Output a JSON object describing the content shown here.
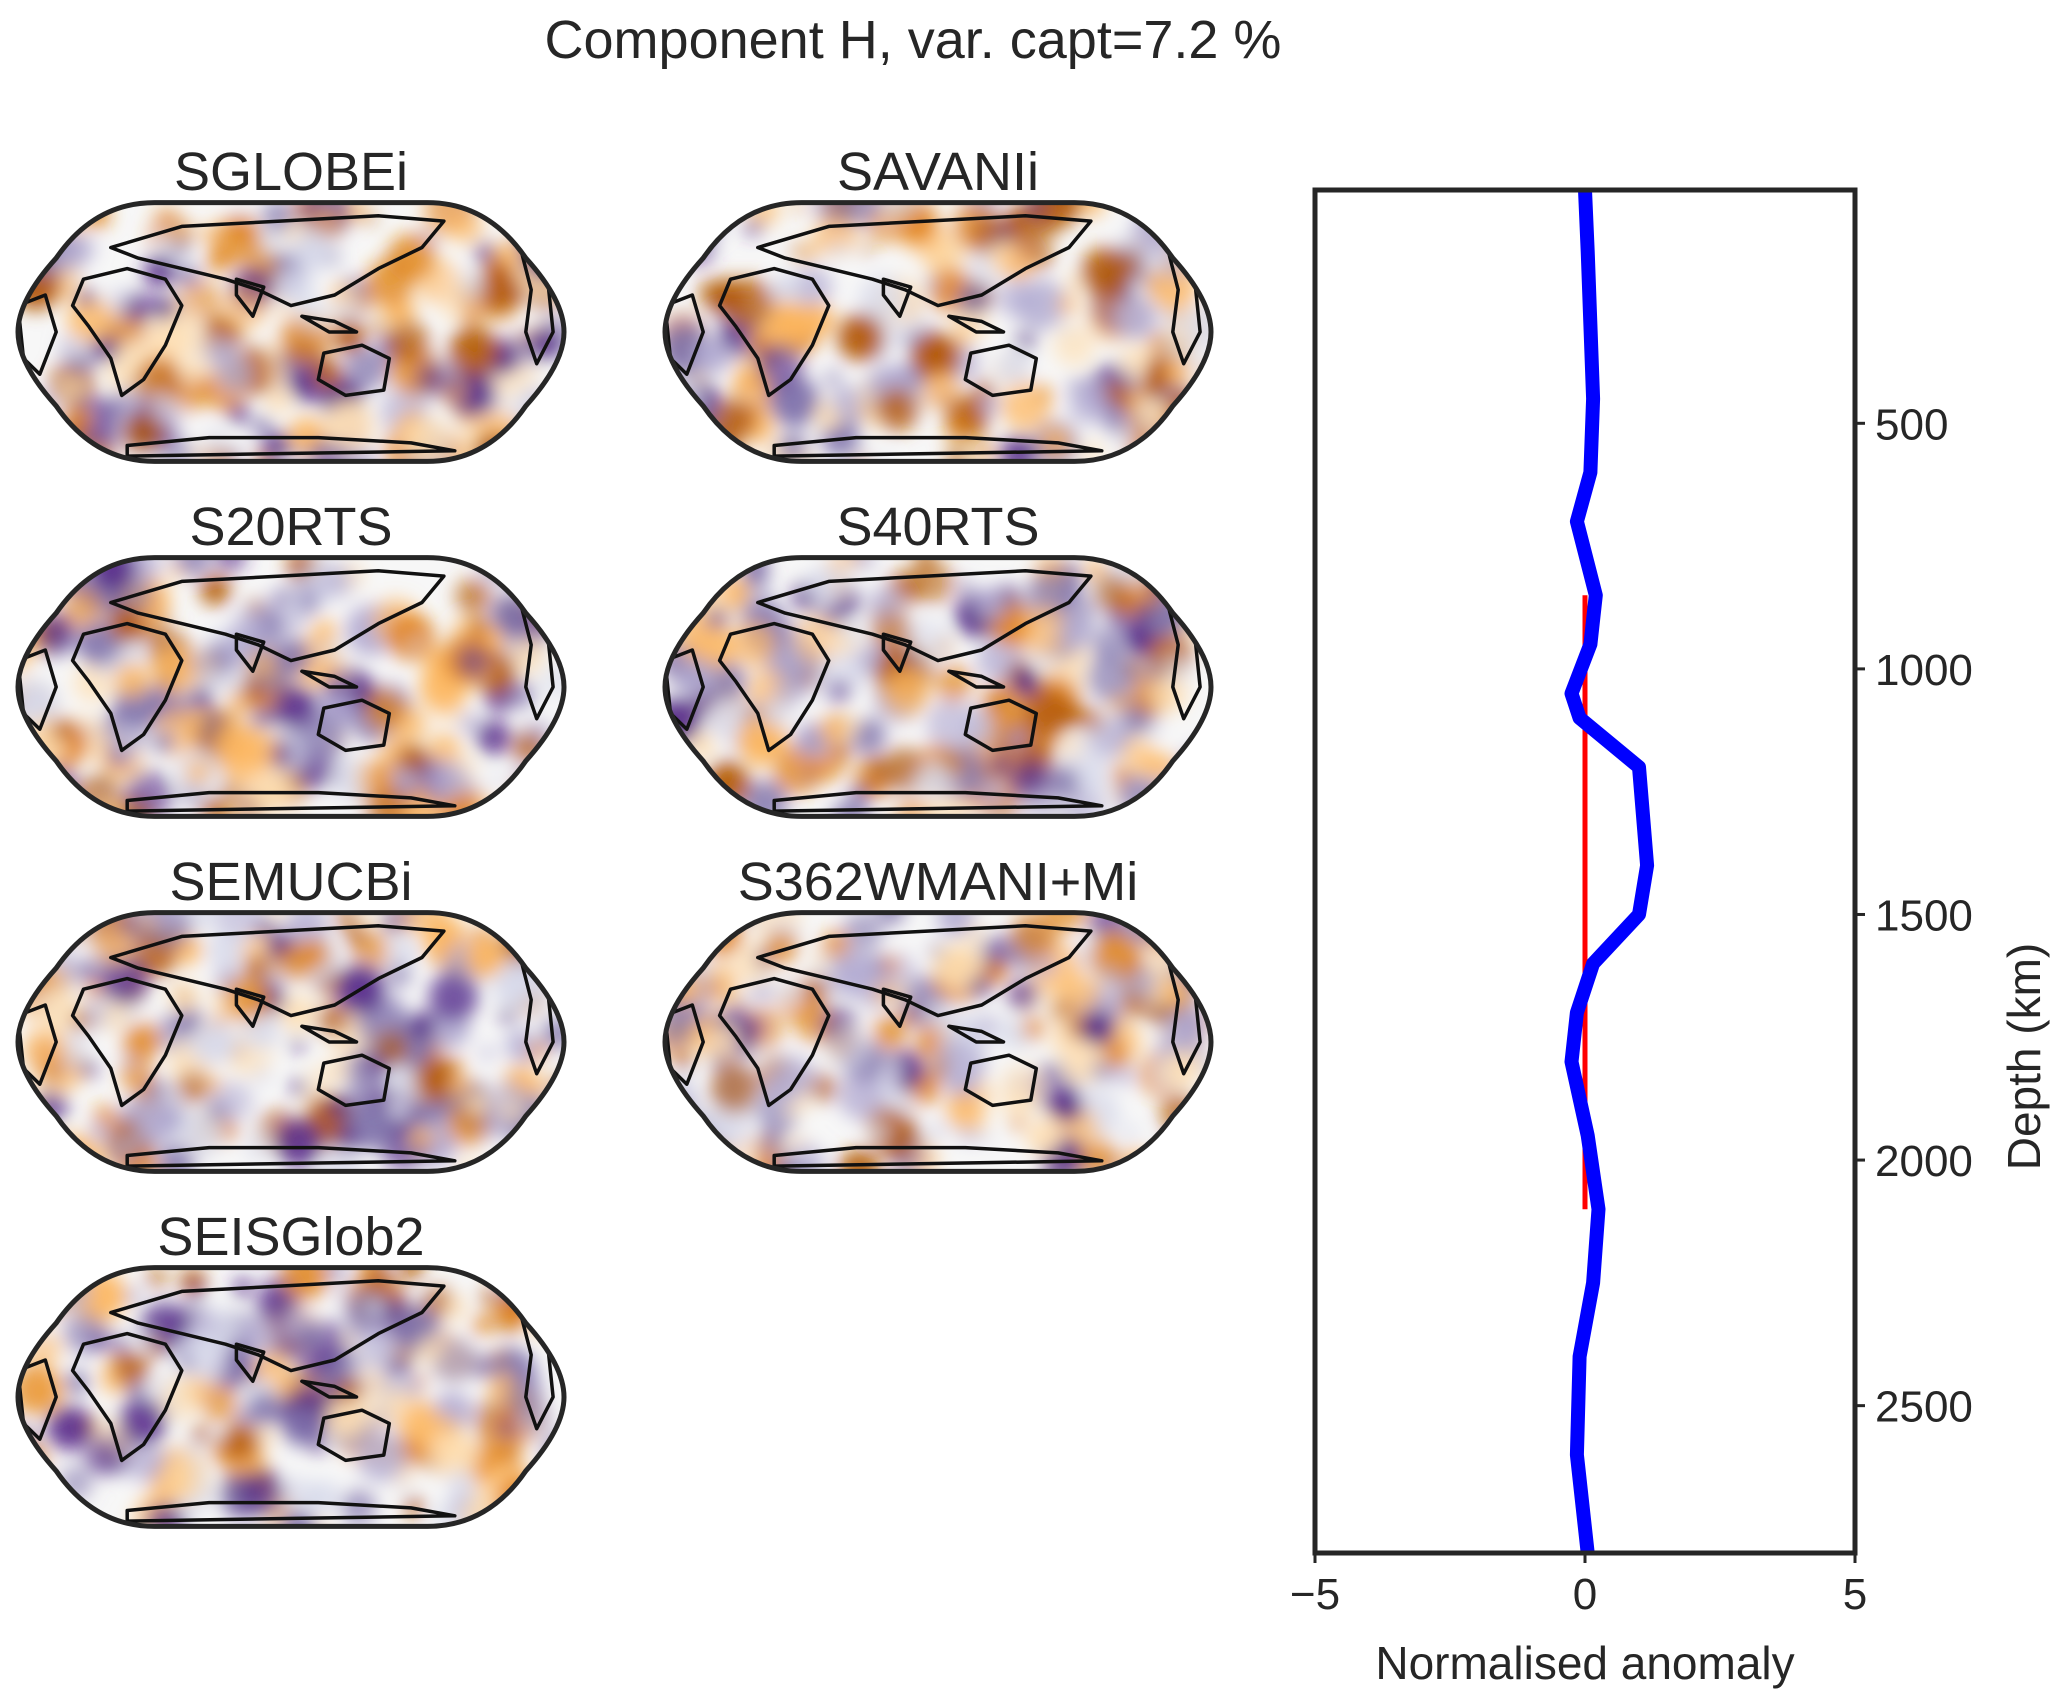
{
  "figure": {
    "title": "Component H, var. capt=7.2 %"
  },
  "maps": [
    {
      "name": "SGLOBEi"
    },
    {
      "name": "SAVANIi"
    },
    {
      "name": "S20RTS"
    },
    {
      "name": "S40RTS"
    },
    {
      "name": "SEMUCBi"
    },
    {
      "name": "S362WMANI+Mi"
    },
    {
      "name": "SEISGlob2"
    }
  ],
  "colors": {
    "positive": "#b35806",
    "negative": "#2d004b",
    "neutral": "#f7f7f7",
    "profile_line": "#0000ff",
    "reference_line": "#ff0000",
    "frame": "#262626"
  },
  "chart_data": {
    "type": "line",
    "xlabel": "Normalised anomaly",
    "ylabel": "Depth (km)",
    "xlim": [
      -5,
      5
    ],
    "ylim": [
      2800,
      25
    ],
    "y_inverted": true,
    "ytick_side": "right",
    "xticks": [
      -5,
      0,
      5
    ],
    "xtick_labels": [
      "−5",
      "0",
      "5"
    ],
    "yticks": [
      500,
      1000,
      1500,
      2000,
      2500
    ],
    "ytick_labels": [
      "500",
      "1000",
      "1500",
      "2000",
      "2500"
    ],
    "grid": false,
    "series": [
      {
        "color": "#ff0000",
        "x": [
          0,
          0
        ],
        "y": [
          850,
          2100
        ]
      },
      {
        "color": "#0000ff",
        "x": [
          0,
          0.05,
          0.1,
          0.15,
          0.1,
          -0.15,
          0.2,
          0.1,
          -0.25,
          -0.1,
          1.0,
          1.15,
          1.0,
          0.15,
          -0.15,
          -0.25,
          0.05,
          0.25,
          0.15,
          -0.1,
          -0.15,
          0.05
        ],
        "y": [
          25,
          150,
          300,
          450,
          600,
          700,
          850,
          950,
          1050,
          1100,
          1200,
          1400,
          1500,
          1600,
          1700,
          1800,
          1950,
          2100,
          2250,
          2400,
          2600,
          2800
        ]
      }
    ]
  }
}
